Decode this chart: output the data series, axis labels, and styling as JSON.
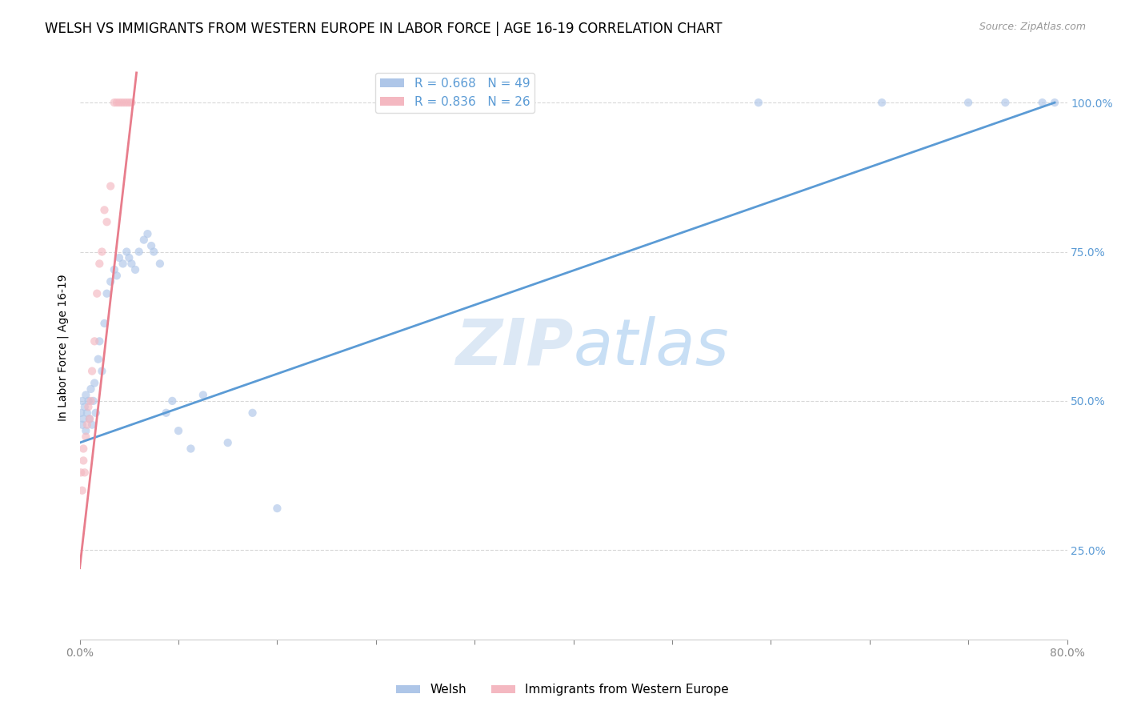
{
  "title": "WELSH VS IMMIGRANTS FROM WESTERN EUROPE IN LABOR FORCE | AGE 16-19 CORRELATION CHART",
  "source": "Source: ZipAtlas.com",
  "ylabel": "In Labor Force | Age 16-19",
  "legend_entries": [
    {
      "label": "Welsh",
      "color": "#aec6e8",
      "R": 0.668,
      "N": 49
    },
    {
      "label": "Immigrants from Western Europe",
      "color": "#f4b8c1",
      "R": 0.836,
      "N": 26
    }
  ],
  "watermark": "ZIPatlas",
  "blue_scatter_x": [
    0.001,
    0.002,
    0.002,
    0.003,
    0.004,
    0.005,
    0.005,
    0.006,
    0.007,
    0.008,
    0.009,
    0.01,
    0.011,
    0.012,
    0.013,
    0.015,
    0.016,
    0.018,
    0.02,
    0.022,
    0.025,
    0.028,
    0.03,
    0.032,
    0.035,
    0.038,
    0.04,
    0.042,
    0.045,
    0.048,
    0.052,
    0.055,
    0.058,
    0.06,
    0.065,
    0.07,
    0.075,
    0.08,
    0.09,
    0.1,
    0.12,
    0.14,
    0.16,
    0.55,
    0.65,
    0.72,
    0.75,
    0.78,
    0.79
  ],
  "blue_scatter_y": [
    0.48,
    0.5,
    0.46,
    0.47,
    0.49,
    0.45,
    0.51,
    0.48,
    0.5,
    0.47,
    0.52,
    0.46,
    0.5,
    0.53,
    0.48,
    0.57,
    0.6,
    0.55,
    0.63,
    0.68,
    0.7,
    0.72,
    0.71,
    0.74,
    0.73,
    0.75,
    0.74,
    0.73,
    0.72,
    0.75,
    0.77,
    0.78,
    0.76,
    0.75,
    0.73,
    0.48,
    0.5,
    0.45,
    0.42,
    0.51,
    0.43,
    0.48,
    0.32,
    1.0,
    1.0,
    1.0,
    1.0,
    1.0,
    1.0
  ],
  "pink_scatter_x": [
    0.001,
    0.002,
    0.003,
    0.003,
    0.004,
    0.005,
    0.006,
    0.007,
    0.008,
    0.009,
    0.01,
    0.012,
    0.014,
    0.016,
    0.018,
    0.02,
    0.022,
    0.025,
    0.028,
    0.03,
    0.032,
    0.034,
    0.036,
    0.038,
    0.04,
    0.042
  ],
  "pink_scatter_y": [
    0.38,
    0.35,
    0.4,
    0.42,
    0.38,
    0.44,
    0.46,
    0.49,
    0.47,
    0.5,
    0.55,
    0.6,
    0.68,
    0.73,
    0.75,
    0.82,
    0.8,
    0.86,
    1.0,
    1.0,
    1.0,
    1.0,
    1.0,
    1.0,
    1.0,
    1.0
  ],
  "blue_line_x": [
    0.0,
    0.79
  ],
  "blue_line_y": [
    0.43,
    1.0
  ],
  "pink_line_x": [
    0.0,
    0.046
  ],
  "pink_line_y": [
    0.22,
    1.05
  ],
  "xmin": 0.0,
  "xmax": 0.8,
  "ymin": 0.1,
  "ymax": 1.08,
  "scatter_size": 55,
  "scatter_alpha": 0.65,
  "blue_dot_color": "#aec6e8",
  "pink_dot_color": "#f4b8c1",
  "trend_blue_color": "#5b9bd5",
  "trend_pink_color": "#e87d8c",
  "grid_color": "#d8d8d8",
  "text_color_blue": "#5b9bd5",
  "watermark_color": "#dce8f5",
  "title_fontsize": 12,
  "axis_label_fontsize": 10,
  "tick_fontsize": 10
}
